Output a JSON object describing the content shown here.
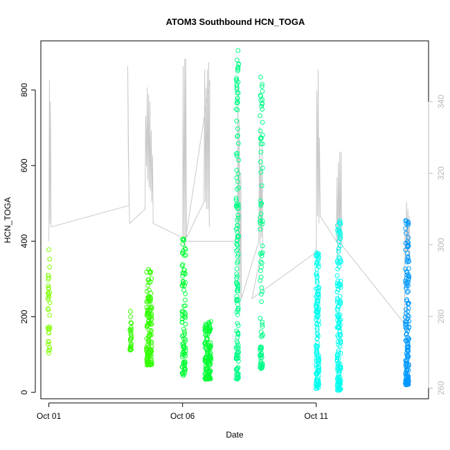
{
  "chart_data": {
    "type": "scatter",
    "title": "ATOM3 Southbound HCN_TOGA",
    "xlabel": "Date",
    "ylabel": "HCN_TOGA",
    "x_tick_labels": [
      "Oct 01",
      "Oct 06",
      "Oct 11"
    ],
    "x_tick_days": [
      1,
      6,
      11
    ],
    "xlim": [
      0.7,
      15.2
    ],
    "ylim": [
      -17,
      930
    ],
    "y_ticks": [
      0,
      200,
      400,
      600,
      800
    ],
    "y2_ticks": [
      260,
      280,
      300,
      320,
      340
    ],
    "y2lim": [
      257,
      357
    ],
    "grid": false,
    "series": [
      {
        "color": "#7fff00",
        "clusters": [
          {
            "x": 1.0,
            "y_min": 95,
            "y_max": 390,
            "n": 35,
            "spread": 0.04
          }
        ]
      },
      {
        "color": "#33ff00",
        "clusters": [
          {
            "x": 4.05,
            "y_min": 112,
            "y_max": 215,
            "n": 25,
            "spread": 0.04
          },
          {
            "x": 4.75,
            "y_min": 72,
            "y_max": 328,
            "n": 130,
            "spread": 0.1
          }
        ]
      },
      {
        "color": "#00ff33",
        "clusters": [
          {
            "x": 6.05,
            "y_min": 45,
            "y_max": 428,
            "n": 90,
            "spread": 0.07
          },
          {
            "x": 6.95,
            "y_min": 35,
            "y_max": 190,
            "n": 130,
            "spread": 0.12
          }
        ]
      },
      {
        "color": "#00ff88",
        "clusters": [
          {
            "x": 8.05,
            "y_min": 35,
            "y_max": 910,
            "n": 150,
            "spread": 0.05
          },
          {
            "x": 8.95,
            "y_min": 62,
            "y_max": 880,
            "n": 90,
            "spread": 0.05
          }
        ]
      },
      {
        "color": "#00ffee",
        "clusters": [
          {
            "x": 11.05,
            "y_min": 10,
            "y_max": 370,
            "n": 130,
            "spread": 0.06
          },
          {
            "x": 11.85,
            "y_min": 5,
            "y_max": 470,
            "n": 140,
            "spread": 0.07
          }
        ]
      },
      {
        "color": "#0099ff",
        "clusters": [
          {
            "x": 14.4,
            "y_min": 20,
            "y_max": 462,
            "n": 150,
            "spread": 0.07
          }
        ]
      }
    ],
    "secondary_line": {
      "color": "#c8c8c8",
      "axis": "right",
      "points": [
        [
          1.0,
          301
        ],
        [
          1.02,
          346
        ],
        [
          1.04,
          306
        ],
        [
          1.06,
          340
        ],
        [
          1.08,
          305
        ],
        [
          4.0,
          311
        ],
        [
          3.95,
          350
        ],
        [
          3.97,
          326
        ],
        [
          4.02,
          306
        ],
        [
          4.6,
          310
        ],
        [
          4.62,
          336
        ],
        [
          4.65,
          322
        ],
        [
          4.68,
          344
        ],
        [
          4.7,
          318
        ],
        [
          4.73,
          342
        ],
        [
          4.75,
          316
        ],
        [
          4.78,
          340
        ],
        [
          4.8,
          315
        ],
        [
          4.83,
          332
        ],
        [
          4.85,
          312
        ],
        [
          4.88,
          325
        ],
        [
          4.9,
          306
        ],
        [
          6.0,
          302
        ],
        [
          6.02,
          350
        ],
        [
          6.05,
          300
        ],
        [
          6.08,
          352
        ],
        [
          6.1,
          299
        ],
        [
          6.12,
          352
        ],
        [
          6.15,
          302
        ],
        [
          6.8,
          312
        ],
        [
          6.83,
          349
        ],
        [
          6.85,
          312
        ],
        [
          6.88,
          344
        ],
        [
          6.9,
          310
        ],
        [
          6.93,
          349
        ],
        [
          6.95,
          310
        ],
        [
          6.98,
          351
        ],
        [
          7.0,
          305
        ],
        [
          7.02,
          346
        ],
        [
          6.1,
          301
        ],
        [
          8.05,
          301
        ],
        [
          8.07,
          347
        ],
        [
          8.1,
          290
        ],
        [
          8.12,
          335
        ],
        [
          8.15,
          283
        ],
        [
          8.18,
          320
        ],
        [
          8.2,
          285
        ],
        [
          8.85,
          301
        ],
        [
          8.88,
          333
        ],
        [
          8.9,
          300
        ],
        [
          8.92,
          322
        ],
        [
          8.95,
          302
        ],
        [
          8.97,
          328
        ],
        [
          9.0,
          300
        ],
        [
          8.6,
          285
        ],
        [
          11.0,
          298
        ],
        [
          11.02,
          343
        ],
        [
          11.05,
          308
        ],
        [
          11.07,
          349
        ],
        [
          11.1,
          306
        ],
        [
          11.12,
          330
        ],
        [
          11.15,
          308
        ],
        [
          11.75,
          301
        ],
        [
          11.78,
          319
        ],
        [
          11.8,
          294
        ],
        [
          11.83,
          323
        ],
        [
          11.86,
          300
        ],
        [
          11.88,
          326
        ],
        [
          11.9,
          298
        ],
        [
          11.93,
          326
        ],
        [
          11.95,
          300
        ],
        [
          14.3,
          278
        ],
        [
          14.32,
          304
        ],
        [
          14.35,
          296
        ],
        [
          14.38,
          312
        ],
        [
          14.4,
          298
        ],
        [
          14.43,
          310
        ],
        [
          14.45,
          296
        ],
        [
          14.48,
          308
        ],
        [
          14.5,
          296
        ]
      ]
    }
  }
}
